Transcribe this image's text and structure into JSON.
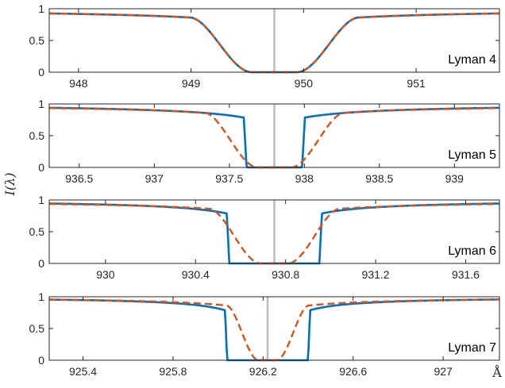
{
  "chart_data": [
    {
      "type": "line",
      "label": "Lyman 4",
      "line_center": 949.74,
      "xlim": [
        947.74,
        951.74
      ],
      "ylim": [
        0,
        1
      ],
      "xticks": [
        948,
        949,
        950,
        951
      ],
      "xtick_labels": [
        "948",
        "949",
        "950",
        "951"
      ],
      "yticks": [
        0,
        0.5,
        1
      ],
      "ytick_labels": [
        "0",
        "0.5",
        "1"
      ],
      "profile": {
        "half_zero": 0.2,
        "plateau": 0.78,
        "width": 1.0,
        "dash_half_zero": 0.16,
        "dash_width": 1.08
      }
    },
    {
      "type": "line",
      "label": "Lyman 5",
      "line_center": 937.8,
      "xlim": [
        936.3,
        939.3
      ],
      "ylim": [
        0,
        1
      ],
      "xticks": [
        936.5,
        937,
        937.5,
        938,
        938.5,
        939
      ],
      "xtick_labels": [
        "936.5",
        "937",
        "937.5",
        "938",
        "938.5",
        "939"
      ],
      "yticks": [
        0,
        0.5,
        1
      ],
      "ytick_labels": [
        "0",
        "0.5",
        "1"
      ],
      "profile": {
        "half_zero": 0.185,
        "plateau": 0.4,
        "width": 0.55,
        "dash_half_zero": 0.11,
        "dash_width": 0.65
      }
    },
    {
      "type": "line",
      "label": "Lyman 6",
      "line_center": 930.75,
      "xlim": [
        929.75,
        931.75
      ],
      "ylim": [
        0,
        1
      ],
      "xticks": [
        930,
        930.4,
        930.8,
        931.2,
        931.6
      ],
      "xtick_labels": [
        "930",
        "930.4",
        "930.8",
        "931.2",
        "931.6"
      ],
      "yticks": [
        0,
        0.5,
        1
      ],
      "ytick_labels": [
        "0",
        "0.5",
        "1"
      ],
      "profile": {
        "half_zero": 0.2,
        "plateau": 0.72,
        "width": 0.3,
        "dash_half_zero": 0.06,
        "dash_width": 0.42
      }
    },
    {
      "type": "line",
      "label": "Lyman 7",
      "line_center": 926.22,
      "xlim": [
        925.25,
        927.25
      ],
      "ylim": [
        0,
        1
      ],
      "xticks": [
        925.4,
        925.8,
        926.2,
        926.6,
        927
      ],
      "xtick_labels": [
        "925.4",
        "925.8",
        "926.2",
        "926.6",
        "927"
      ],
      "yticks": [
        0,
        0.5,
        1
      ],
      "ytick_labels": [
        "0",
        "0.5",
        "1"
      ],
      "profile": {
        "half_zero": 0.18,
        "plateau": 0.8,
        "width": 0.22,
        "dash_half_zero": 0.04,
        "dash_width": 0.26
      }
    }
  ],
  "ylabel": "I(λ)",
  "xunit": "Å",
  "colors": {
    "solid": "#0072BD",
    "dashed": "#D95319",
    "center_line": "#BDBDBD",
    "axes": "#262626"
  }
}
